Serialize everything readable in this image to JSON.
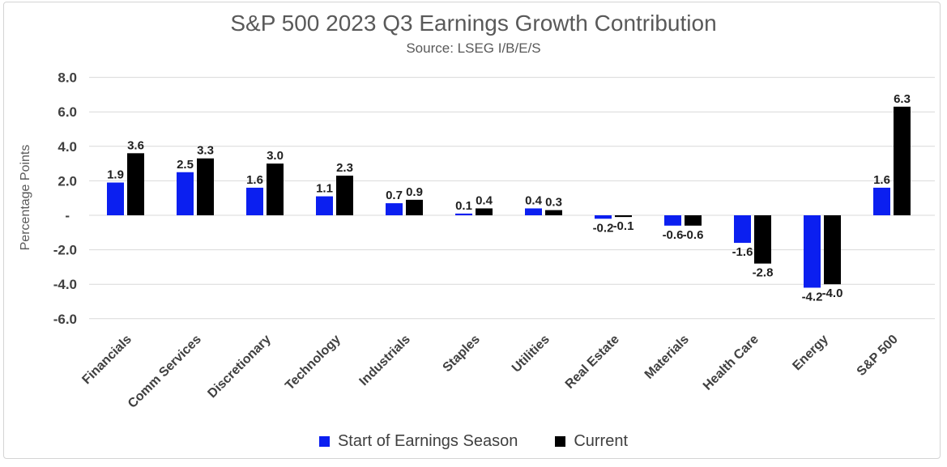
{
  "chart_data": {
    "type": "bar",
    "title": "S&P 500 2023 Q3 Earnings Growth Contribution",
    "subtitle": "Source: LSEG I/B/E/S",
    "ylabel": "Percentage Points",
    "ylim": [
      -6.5,
      8.5
    ],
    "grid": true,
    "legend_position": "bottom",
    "yticks": [
      {
        "v": 8,
        "label": "8.0"
      },
      {
        "v": 6,
        "label": "6.0"
      },
      {
        "v": 4,
        "label": "4.0"
      },
      {
        "v": 2,
        "label": "2.0"
      },
      {
        "v": 0,
        "label": "-"
      },
      {
        "v": -2,
        "label": "-2.0"
      },
      {
        "v": -4,
        "label": "-4.0"
      },
      {
        "v": -6,
        "label": "-6.0"
      }
    ],
    "categories": [
      "Financials",
      "Comm Services",
      "Discretionary",
      "Technology",
      "Industrials",
      "Staples",
      "Utilities",
      "Real Estate",
      "Materials",
      "Health Care",
      "Energy",
      "S&P 500"
    ],
    "series": [
      {
        "name": "Start of Earnings Season",
        "color": "#0b1ff0",
        "values": [
          1.9,
          2.5,
          1.6,
          1.1,
          0.7,
          0.1,
          0.4,
          -0.2,
          -0.6,
          -1.6,
          -4.2,
          1.6
        ]
      },
      {
        "name": "Current",
        "color": "#000000",
        "values": [
          3.6,
          3.3,
          3.0,
          2.3,
          0.9,
          0.4,
          0.3,
          -0.1,
          -0.6,
          -2.8,
          -4.0,
          6.3
        ]
      }
    ]
  },
  "colors": {
    "gridline": "#d9d9d9",
    "border": "#d4d4d4",
    "title_text": "#595959",
    "tick_text": "#404040",
    "value_label_text": "#1f1f1f"
  }
}
